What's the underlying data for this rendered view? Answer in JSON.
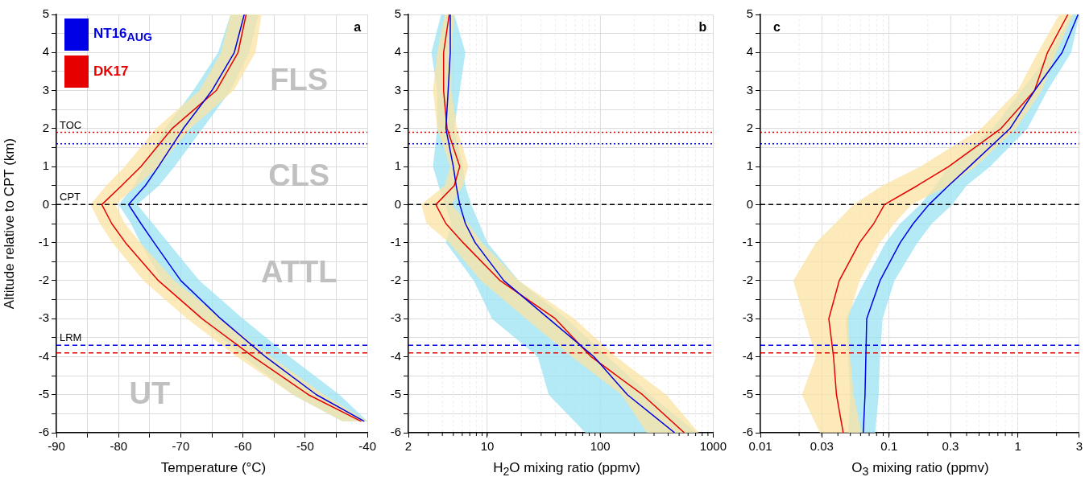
{
  "chart_data": [
    {
      "type": "line",
      "orientation": "horizontal",
      "xlabel": "Temperature (°C)",
      "ylabel": "Altitude relative to CPT (km)",
      "legend": "top left",
      "grid": true,
      "marker": "none",
      "line_style": "solid",
      "xlim": [
        -90,
        -40
      ],
      "xticks": [
        -90,
        {
          "value": -85,
          "label": null
        },
        -80,
        {
          "value": -75,
          "label": null
        },
        -70,
        {
          "value": -65,
          "label": null
        },
        -60,
        {
          "value": -55,
          "label": null
        },
        -50,
        {
          "value": -45,
          "label": null
        },
        -40
      ],
      "ylim": [
        -6,
        5
      ],
      "yticks": [
        -6,
        {
          "value": -5.5,
          "label": null
        },
        -5,
        {
          "value": -4.5,
          "label": null
        },
        -4,
        {
          "value": -3.5,
          "label": null
        },
        -3,
        {
          "value": -2.5,
          "label": null
        },
        -2,
        {
          "value": -1.5,
          "label": null
        },
        -1,
        {
          "value": -0.5,
          "label": null
        },
        0,
        {
          "value": 0.5,
          "label": null
        },
        1,
        {
          "value": 1.5,
          "label": null
        },
        2,
        {
          "value": 2.5,
          "label": null
        },
        3,
        {
          "value": 3.5,
          "label": null
        },
        4,
        {
          "value": 4.5,
          "label": null
        },
        5
      ],
      "series": [
        {
          "name": "NT16$_{AUG}$",
          "color": "#0000e6",
          "x": [
            5,
            4,
            3,
            2,
            1,
            0.5,
            0,
            -0.5,
            -1,
            -2,
            -3,
            -4,
            -5,
            -5.7
          ],
          "values": [
            -59.8,
            -61.4,
            -65,
            -69.6,
            -73.6,
            -75.7,
            -78.4,
            -76.4,
            -74.3,
            -70,
            -63.6,
            -56.4,
            -48.2,
            -40.5
          ],
          "lower": [
            -62,
            -64,
            -68,
            -72.5,
            -76,
            -77.5,
            -80,
            -78,
            -76.5,
            -73,
            -67,
            -60,
            -52,
            -44
          ],
          "upper": [
            -57.5,
            -59,
            -62,
            -66.5,
            -71,
            -73.5,
            -77,
            -74.5,
            -72,
            -67,
            -60,
            -52.5,
            -44.5,
            -40
          ]
        },
        {
          "name": "DK17",
          "color": "#e60000",
          "x": [
            5,
            4,
            3,
            2,
            1,
            0.5,
            0,
            -0.5,
            -1,
            -2,
            -3,
            -4,
            -5,
            -5.7
          ],
          "values": [
            -59.5,
            -60.8,
            -64.3,
            -71.4,
            -76.4,
            -79.5,
            -82.7,
            -81.1,
            -78.9,
            -73.6,
            -66.6,
            -58.4,
            -49.5,
            -41
          ],
          "lower": [
            -62,
            -63.5,
            -67,
            -74,
            -79,
            -82,
            -84.5,
            -83,
            -81,
            -76,
            -69,
            -61,
            -52,
            -44
          ],
          "upper": [
            -57,
            -58,
            -61.5,
            -68.5,
            -73.5,
            -77,
            -80.5,
            -79,
            -76.5,
            -71,
            -63.5,
            -55.5,
            -47,
            -40
          ]
        }
      ],
      "ref_lines": [
        {
          "axis": "y",
          "value": 1.9,
          "label": "TOC",
          "color": "#e60000",
          "line_style": "dotted"
        },
        {
          "axis": "y",
          "value": 1.6,
          "label": null,
          "color": "#0000e6",
          "line_style": "dotted"
        },
        {
          "axis": "y",
          "value": 0,
          "label": "CPT",
          "color": "#000000",
          "line_style": "dashed"
        },
        {
          "axis": "y",
          "value": -3.7,
          "label": "LRM",
          "color": "#0000e6",
          "line_style": "dashed"
        },
        {
          "axis": "y",
          "value": -3.9,
          "label": null,
          "color": "#e60000",
          "line_style": "dashed"
        }
      ],
      "annotations": [
        "a",
        "FLS",
        "CLS",
        "ATTL",
        "UT"
      ]
    },
    {
      "type": "line",
      "orientation": "horizontal",
      "xlabel": "H$_{2}$O mixing ratio (ppmv)",
      "grid": true,
      "marker": "none",
      "line_style": "solid",
      "log": "x",
      "xlim": [
        2,
        1000
      ],
      "xticks": [
        2,
        10,
        100,
        1000
      ],
      "ylim": [
        -6,
        5
      ],
      "yticks": [
        -6,
        {
          "value": -5.5,
          "label": null
        },
        -5,
        {
          "value": -4.5,
          "label": null
        },
        -4,
        {
          "value": -3.5,
          "label": null
        },
        -3,
        {
          "value": -2.5,
          "label": null
        },
        -2,
        {
          "value": -1.5,
          "label": null
        },
        -1,
        {
          "value": -0.5,
          "label": null
        },
        0,
        {
          "value": 0.5,
          "label": null
        },
        1,
        {
          "value": 1.5,
          "label": null
        },
        2,
        {
          "value": 2.5,
          "label": null
        },
        3,
        {
          "value": 3.5,
          "label": null
        },
        4,
        {
          "value": 4.5,
          "label": null
        },
        5
      ],
      "series": [
        {
          "color": "#0000e6",
          "x": [
            5,
            4,
            3,
            2,
            1,
            0.5,
            0,
            -0.5,
            -1,
            -2,
            -3,
            -4,
            -5,
            -6
          ],
          "values": [
            4.7,
            4.7,
            4.5,
            4.3,
            5,
            5.3,
            5.7,
            6.4,
            7.8,
            14,
            35,
            88,
            174,
            456
          ],
          "lower": [
            3.9,
            3.2,
            3.6,
            3.6,
            3.3,
            3.7,
            4.2,
            4.8,
            4.3,
            7.6,
            11,
            28,
            35,
            74
          ],
          "upper": [
            5.1,
            6.4,
            5.7,
            5.1,
            6.1,
            6.4,
            7.2,
            8.5,
            10,
            19,
            50,
            116,
            273,
            719
          ]
        },
        {
          "color": "#e60000",
          "x": [
            5,
            4,
            3,
            2,
            1,
            0.5,
            0,
            -0.5,
            -1,
            -2,
            -3,
            -4,
            -5,
            -6
          ],
          "values": [
            4.6,
            4.1,
            4.1,
            4.4,
            5.7,
            5.1,
            3.5,
            4.3,
            6.1,
            13,
            40,
            83,
            237,
            555
          ],
          "lower": [
            4.2,
            3.6,
            3.3,
            3.6,
            4.7,
            4.2,
            2.6,
            2.9,
            4.6,
            8.8,
            22,
            56,
            155,
            259
          ],
          "upper": [
            5.1,
            4.8,
            4.8,
            5.4,
            6.8,
            6.1,
            4.8,
            6.8,
            9,
            19,
            59,
            138,
            385,
            745
          ]
        }
      ],
      "ref_lines": [
        {
          "axis": "y",
          "value": 1.9,
          "label": null,
          "color": "#e60000",
          "line_style": "dotted"
        },
        {
          "axis": "y",
          "value": 1.6,
          "label": null,
          "color": "#0000e6",
          "line_style": "dotted"
        },
        {
          "axis": "y",
          "value": 0,
          "label": null,
          "color": "#000000",
          "line_style": "dashed"
        },
        {
          "axis": "y",
          "value": -3.7,
          "label": null,
          "color": "#0000e6",
          "line_style": "dashed"
        },
        {
          "axis": "y",
          "value": -3.9,
          "label": null,
          "color": "#e60000",
          "line_style": "dashed"
        }
      ],
      "annotations": [
        "b"
      ]
    },
    {
      "type": "line",
      "orientation": "horizontal",
      "xlabel": "O$_{3}$ mixing ratio (ppmv)",
      "grid": true,
      "marker": "none",
      "line_style": "solid",
      "log": "x",
      "xlim": [
        0.01,
        3
      ],
      "xticks": [
        0.01,
        0.03,
        0.1,
        0.3,
        1,
        3
      ],
      "ylim": [
        -6,
        5
      ],
      "yticks": [
        -6,
        {
          "value": -5.5,
          "label": null
        },
        -5,
        {
          "value": -4.5,
          "label": null
        },
        -4,
        {
          "value": -3.5,
          "label": null
        },
        -3,
        {
          "value": -2.5,
          "label": null
        },
        -2,
        {
          "value": -1.5,
          "label": null
        },
        -1,
        {
          "value": -0.5,
          "label": null
        },
        0,
        {
          "value": 0.5,
          "label": null
        },
        1,
        {
          "value": 1.5,
          "label": null
        },
        2,
        {
          "value": 2.5,
          "label": null
        },
        3,
        {
          "value": 3.5,
          "label": null
        },
        4,
        {
          "value": 4.5,
          "label": null
        },
        5
      ],
      "series": [
        {
          "color": "#0000e6",
          "x": [
            5,
            4,
            3,
            2,
            1,
            0.5,
            0,
            -0.5,
            -1,
            -2,
            -3,
            -4,
            -5,
            -6
          ],
          "values": [
            2.94,
            2.21,
            1.35,
            0.87,
            0.42,
            0.29,
            0.204,
            0.154,
            0.122,
            0.085,
            0.067,
            0.066,
            0.065,
            0.063
          ],
          "lower": [
            2.6,
            1.8,
            1.07,
            0.64,
            0.29,
            0.23,
            0.175,
            0.122,
            0.094,
            0.065,
            0.046,
            0.048,
            0.05,
            0.048
          ],
          "upper": [
            3,
            2.6,
            1.7,
            1.19,
            0.61,
            0.4,
            0.31,
            0.215,
            0.166,
            0.11,
            0.089,
            0.085,
            0.083,
            0.078
          ]
        },
        {
          "color": "#e60000",
          "x": [
            5,
            4,
            3,
            2,
            1,
            0.5,
            0,
            -0.5,
            -1,
            -2,
            -3,
            -4,
            -5,
            -6
          ],
          "values": [
            2.45,
            1.7,
            1.35,
            0.74,
            0.29,
            0.166,
            0.092,
            0.076,
            0.059,
            0.041,
            0.034,
            0.037,
            0.039,
            0.044
          ],
          "lower": [
            2.1,
            1.43,
            1,
            0.52,
            0.175,
            0.089,
            0.053,
            0.038,
            0.027,
            0.018,
            0.022,
            0.027,
            0.021,
            0.029
          ],
          "upper": [
            2.7,
            1.99,
            1.54,
            0.97,
            0.47,
            0.29,
            0.15,
            0.11,
            0.085,
            0.059,
            0.048,
            0.05,
            0.053,
            0.061
          ]
        }
      ],
      "ref_lines": [
        {
          "axis": "y",
          "value": 1.9,
          "label": null,
          "color": "#e60000",
          "line_style": "dotted"
        },
        {
          "axis": "y",
          "value": 1.6,
          "label": null,
          "color": "#0000e6",
          "line_style": "dotted"
        },
        {
          "axis": "y",
          "value": 0,
          "label": null,
          "color": "#000000",
          "line_style": "dashed"
        },
        {
          "axis": "y",
          "value": -3.7,
          "label": null,
          "color": "#0000e6",
          "line_style": "dashed"
        },
        {
          "axis": "y",
          "value": -3.9,
          "label": null,
          "color": "#e60000",
          "line_style": "dashed"
        }
      ],
      "annotations": [
        "c"
      ]
    }
  ]
}
